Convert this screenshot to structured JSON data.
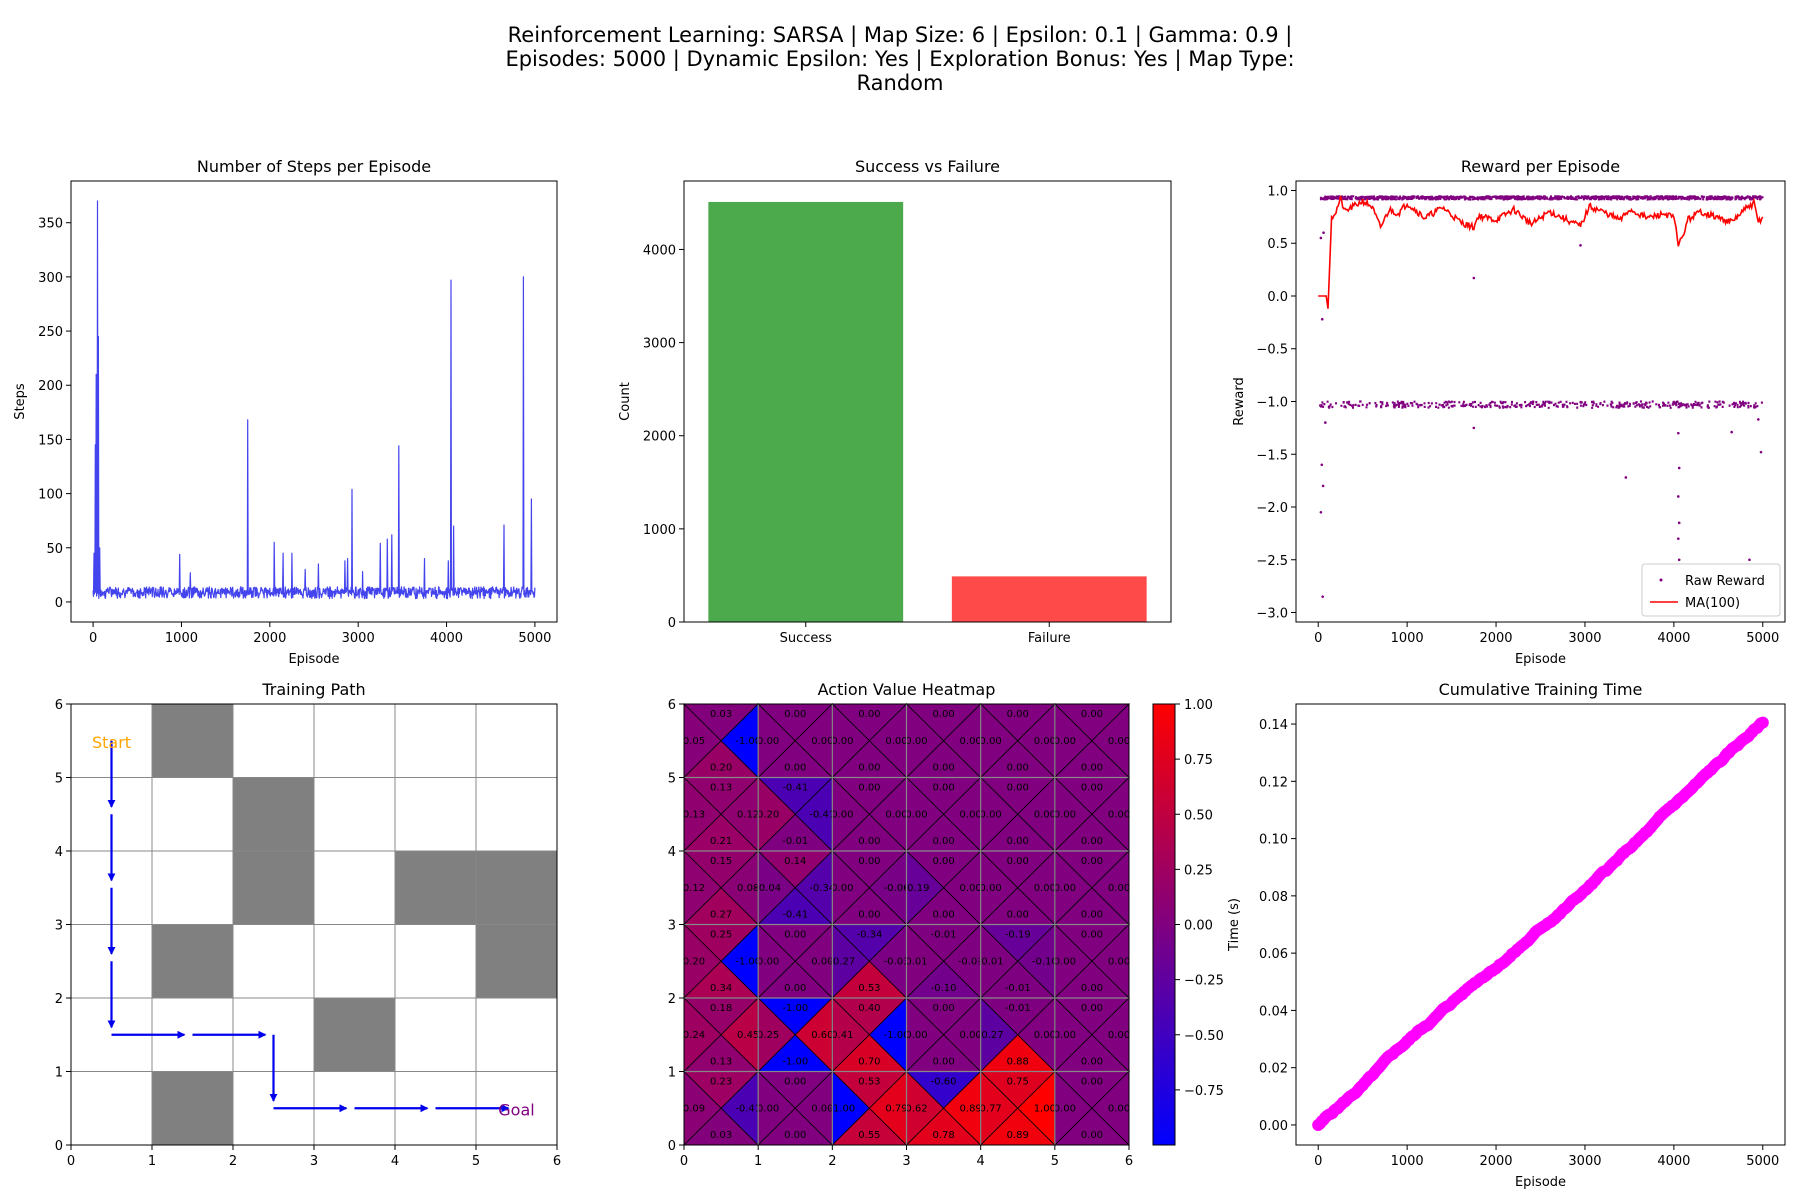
{
  "suptitle": [
    "Reinforcement Learning: SARSA | Map Size: 6 | Epsilon: 0.1 | Gamma: 0.9 |",
    "Episodes: 5000 | Dynamic Epsilon: Yes | Exploration Bonus: Yes | Map Type:",
    "Random"
  ],
  "colors": {
    "steps_line": "#4444ee",
    "success": "#4caa4c",
    "failure": "#ff4a4a",
    "raw_reward": "#800080",
    "ma": "#ff0000",
    "obstacle": "#808080",
    "path": "#0000ee",
    "start": "#ffa500",
    "goal": "#800080",
    "time": "#ff00ff"
  },
  "chart_data": [
    {
      "id": "steps",
      "type": "line",
      "title": "Number of Steps per Episode",
      "xlabel": "Episode",
      "ylabel": "Steps",
      "xlim": [
        -250,
        5250
      ],
      "ylim": [
        -18.5,
        388.5
      ],
      "xticks": [
        0,
        1000,
        2000,
        3000,
        4000,
        5000
      ],
      "yticks": [
        0,
        50,
        100,
        150,
        200,
        250,
        300,
        350
      ],
      "baseline": [
        7,
        14
      ],
      "spikes": [
        [
          12,
          45
        ],
        [
          25,
          145
        ],
        [
          35,
          210
        ],
        [
          48,
          370
        ],
        [
          60,
          245
        ],
        [
          75,
          50
        ],
        [
          980,
          44
        ],
        [
          1100,
          27
        ],
        [
          1750,
          168
        ],
        [
          2050,
          55
        ],
        [
          2150,
          45
        ],
        [
          2250,
          45
        ],
        [
          2400,
          30
        ],
        [
          2550,
          35
        ],
        [
          2850,
          38
        ],
        [
          2880,
          40
        ],
        [
          2930,
          104
        ],
        [
          3050,
          28
        ],
        [
          3250,
          54
        ],
        [
          3330,
          58
        ],
        [
          3380,
          62
        ],
        [
          3460,
          144
        ],
        [
          3750,
          40
        ],
        [
          4020,
          38
        ],
        [
          4050,
          297
        ],
        [
          4080,
          70
        ],
        [
          4650,
          71
        ],
        [
          4870,
          300
        ],
        [
          4960,
          95
        ]
      ]
    },
    {
      "id": "success",
      "type": "bar",
      "title": "Success vs Failure",
      "ylabel": "Count",
      "categories": [
        "Success",
        "Failure"
      ],
      "values": [
        4510,
        490
      ],
      "ylim": [
        0,
        4735
      ],
      "yticks": [
        0,
        1000,
        2000,
        3000,
        4000
      ]
    },
    {
      "id": "reward",
      "type": "scatter",
      "title": "Reward per Episode",
      "xlabel": "Episode",
      "ylabel": "Reward",
      "xlim": [
        -250,
        5250
      ],
      "ylim": [
        -3.09,
        1.09
      ],
      "xticks": [
        0,
        1000,
        2000,
        3000,
        4000,
        5000
      ],
      "yticks": [
        1.0,
        0.5,
        0.0,
        -0.5,
        -1.0,
        -1.5,
        -2.0,
        -2.5,
        -3.0
      ],
      "legend": [
        "Raw Reward",
        "MA(100)"
      ],
      "legend_loc": "lower right",
      "upper_level": 0.93,
      "lower_level": -1.03,
      "outliers": [
        [
          30,
          0.55
        ],
        [
          60,
          0.6
        ],
        [
          45,
          -0.22
        ],
        [
          80,
          -1.2
        ],
        [
          40,
          -1.6
        ],
        [
          55,
          -1.8
        ],
        [
          30,
          -2.05
        ],
        [
          50,
          -2.85
        ],
        [
          1750,
          0.17
        ],
        [
          2950,
          0.48
        ],
        [
          1750,
          -1.25
        ],
        [
          3460,
          -1.72
        ],
        [
          4050,
          -1.3
        ],
        [
          4060,
          -1.63
        ],
        [
          4050,
          -1.9
        ],
        [
          4060,
          -2.15
        ],
        [
          4050,
          -2.3
        ],
        [
          4060,
          -2.5
        ],
        [
          4650,
          -1.29
        ],
        [
          4850,
          -2.5
        ],
        [
          4950,
          -1.17
        ],
        [
          4980,
          -1.48
        ]
      ],
      "ma": [
        [
          0,
          0
        ],
        [
          90,
          0
        ],
        [
          110,
          -0.12
        ],
        [
          150,
          0.75
        ],
        [
          200,
          0.8
        ],
        [
          250,
          0.92
        ],
        [
          300,
          0.8
        ],
        [
          400,
          0.85
        ],
        [
          500,
          0.9
        ],
        [
          600,
          0.85
        ],
        [
          700,
          0.65
        ],
        [
          800,
          0.82
        ],
        [
          900,
          0.78
        ],
        [
          1000,
          0.88
        ],
        [
          1200,
          0.74
        ],
        [
          1400,
          0.84
        ],
        [
          1600,
          0.7
        ],
        [
          1750,
          0.65
        ],
        [
          1800,
          0.76
        ],
        [
          2000,
          0.72
        ],
        [
          2200,
          0.82
        ],
        [
          2400,
          0.68
        ],
        [
          2600,
          0.8
        ],
        [
          2800,
          0.72
        ],
        [
          2950,
          0.66
        ],
        [
          3050,
          0.85
        ],
        [
          3200,
          0.8
        ],
        [
          3400,
          0.72
        ],
        [
          3500,
          0.82
        ],
        [
          3700,
          0.74
        ],
        [
          3900,
          0.78
        ],
        [
          4000,
          0.74
        ],
        [
          4050,
          0.5
        ],
        [
          4100,
          0.55
        ],
        [
          4150,
          0.72
        ],
        [
          4300,
          0.8
        ],
        [
          4500,
          0.74
        ],
        [
          4650,
          0.7
        ],
        [
          4800,
          0.82
        ],
        [
          4900,
          0.88
        ],
        [
          4950,
          0.7
        ],
        [
          5000,
          0.75
        ]
      ]
    },
    {
      "id": "path",
      "type": "grid",
      "title": "Training Path",
      "xlim": [
        0,
        6
      ],
      "ylim": [
        0,
        6
      ],
      "xticks": [
        0,
        1,
        2,
        3,
        4,
        5,
        6
      ],
      "yticks": [
        0,
        1,
        2,
        3,
        4,
        5,
        6
      ],
      "obstacles": [
        [
          1,
          5
        ],
        [
          2,
          4
        ],
        [
          2,
          3
        ],
        [
          1,
          2
        ],
        [
          4,
          3
        ],
        [
          5,
          3
        ],
        [
          5,
          2
        ],
        [
          3,
          1
        ],
        [
          1,
          0
        ]
      ],
      "start_label": "Start",
      "goal_label": "Goal",
      "start": [
        0.5,
        5.5
      ],
      "goal": [
        5.5,
        0.5
      ],
      "path": [
        [
          0.5,
          5.5
        ],
        [
          0.5,
          4.5
        ],
        [
          0.5,
          3.5
        ],
        [
          0.5,
          2.5
        ],
        [
          0.5,
          1.5
        ],
        [
          1.5,
          1.5
        ],
        [
          2.5,
          1.5
        ],
        [
          2.5,
          0.5
        ],
        [
          3.5,
          0.5
        ],
        [
          4.5,
          0.5
        ],
        [
          5.5,
          0.5
        ]
      ]
    },
    {
      "id": "heatmap",
      "type": "heatmap",
      "title": "Action Value Heatmap",
      "xlim": [
        0,
        6
      ],
      "ylim": [
        0,
        6
      ],
      "xticks": [
        0,
        1,
        2,
        3,
        4,
        5,
        6
      ],
      "yticks": [
        0,
        1,
        2,
        3,
        4,
        5,
        6
      ],
      "colorbar_ticks": [
        "1.00",
        "0.75",
        "0.50",
        "0.25",
        "0.00",
        "−0.25",
        "−0.50",
        "−0.75"
      ],
      "rows_top_to_bottom": [
        [
          [
            "0.03",
            "0.05",
            "0.20",
            "-1.00"
          ],
          [
            "0.00",
            "0.00",
            "0.00",
            "0.00"
          ],
          [
            "0.00",
            "0.00",
            "0.00",
            "0.00"
          ],
          [
            "0.00",
            "0.00",
            "0.00",
            "0.00"
          ],
          [
            "0.00",
            "0.00",
            "0.00",
            "0.00"
          ],
          [
            "0.00",
            "0.00",
            "0.00",
            "0.00"
          ]
        ],
        [
          [
            "0.13",
            "0.13",
            "0.21",
            "0.12"
          ],
          [
            "-0.41",
            "0.20",
            "-0.01",
            "-0.41"
          ],
          [
            "0.00",
            "0.00",
            "0.00",
            "0.00"
          ],
          [
            "0.00",
            "0.00",
            "0.00",
            "0.00"
          ],
          [
            "0.00",
            "0.00",
            "0.00",
            "0.00"
          ],
          [
            "0.00",
            "0.00",
            "0.00",
            "0.00"
          ]
        ],
        [
          [
            "0.15",
            "0.12",
            "0.27",
            "0.08"
          ],
          [
            "0.14",
            "-0.04",
            "-0.41",
            "-0.34"
          ],
          [
            "0.00",
            "0.00",
            "0.00",
            "-0.06"
          ],
          [
            "0.00",
            "-0.19",
            "0.00",
            "0.00"
          ],
          [
            "0.00",
            "0.00",
            "0.00",
            "0.00"
          ],
          [
            "0.00",
            "0.00",
            "0.00",
            "0.00"
          ]
        ],
        [
          [
            "0.25",
            "0.20",
            "0.34",
            "-1.00"
          ],
          [
            "0.00",
            "0.00",
            "0.00",
            "0.00"
          ],
          [
            "-0.34",
            "-0.27",
            "0.53",
            "-0.03"
          ],
          [
            "-0.01",
            "0.01",
            "-0.10",
            "-0.01"
          ],
          [
            "-0.19",
            "-0.01",
            "-0.01",
            "-0.10"
          ],
          [
            "0.00",
            "0.00",
            "0.00",
            "0.00"
          ]
        ],
        [
          [
            "0.18",
            "0.24",
            "0.13",
            "0.45"
          ],
          [
            "-1.00",
            "0.25",
            "-1.00",
            "0.60"
          ],
          [
            "0.40",
            "0.41",
            "0.70",
            "-1.00"
          ],
          [
            "0.00",
            "0.00",
            "0.00",
            "0.00"
          ],
          [
            "-0.01",
            "-0.27",
            "0.88",
            "0.00"
          ],
          [
            "0.00",
            "0.00",
            "0.00",
            "0.00"
          ]
        ],
        [
          [
            "0.23",
            "0.09",
            "0.03",
            "-0.41"
          ],
          [
            "0.00",
            "0.00",
            "0.00",
            "0.00"
          ],
          [
            "0.53",
            "-1.00",
            "0.55",
            "0.79"
          ],
          [
            "-0.60",
            "0.62",
            "0.78",
            "0.89"
          ],
          [
            "0.75",
            "0.77",
            "0.89",
            "1.00"
          ],
          [
            "0.00",
            "0.00",
            "0.00",
            "0.00"
          ]
        ]
      ]
    },
    {
      "id": "time",
      "type": "scatter",
      "title": "Cumulative Training Time",
      "xlabel": "Episode",
      "ylabel": "Time (s)",
      "xlim": [
        -250,
        5250
      ],
      "ylim": [
        -0.007,
        0.147
      ],
      "xticks": [
        0,
        1000,
        2000,
        3000,
        4000,
        5000
      ],
      "yticks": [
        0.0,
        0.02,
        0.04,
        0.06,
        0.08,
        0.1,
        0.12,
        0.14
      ],
      "total_episodes": 5000,
      "final_time": 0.1405
    }
  ]
}
